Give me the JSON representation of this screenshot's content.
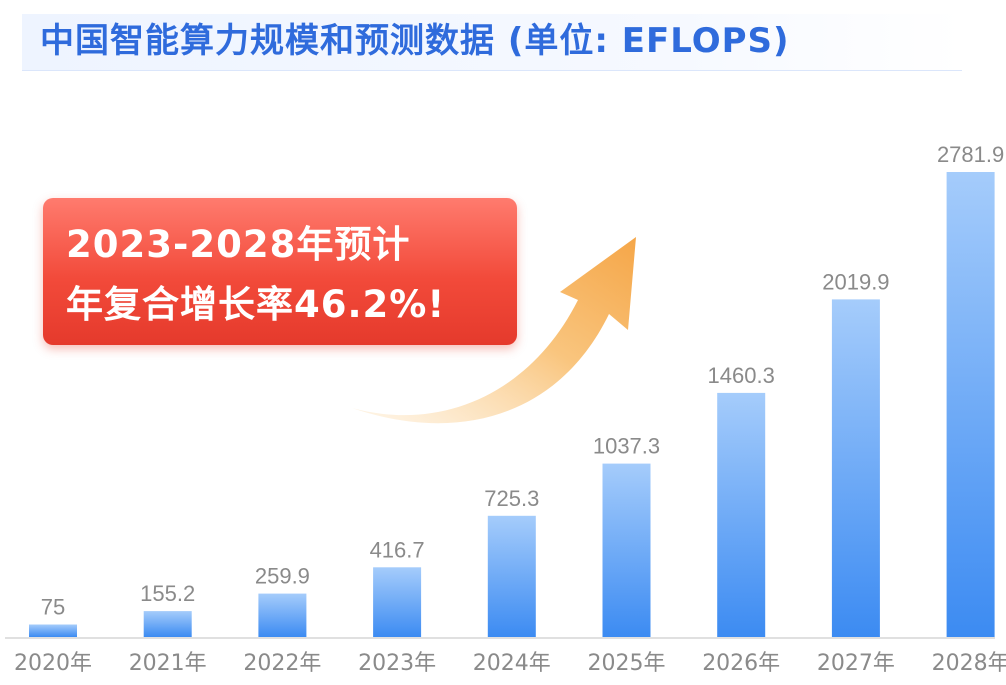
{
  "title": "中国智能算力规模和预测数据 (单位: EFLOPS)",
  "callout": {
    "line1": "2023-2028年预计",
    "line2": "年复合增长率46.2%!"
  },
  "colors": {
    "bar_top": "#a5ccfb",
    "bar_bottom": "#3c8bf2",
    "title": "#2f6bdc",
    "callout": "#f04a3a",
    "arrow": "#f7b35c"
  },
  "chart_data": {
    "type": "bar",
    "categories": [
      "2020年",
      "2021年",
      "2022年",
      "2023年",
      "2024年",
      "2025年",
      "2026年",
      "2027年",
      "2028年"
    ],
    "values": [
      75,
      155.2,
      259.9,
      416.7,
      725.3,
      1037.3,
      1460.3,
      2019.9,
      2781.9
    ],
    "value_labels": [
      "75",
      "155.2",
      "259.9",
      "416.7",
      "725.3",
      "1037.3",
      "1460.3",
      "2019.9",
      "2781.9"
    ],
    "ylim": [
      0,
      2781.9
    ],
    "grid": false,
    "legend": "none"
  }
}
